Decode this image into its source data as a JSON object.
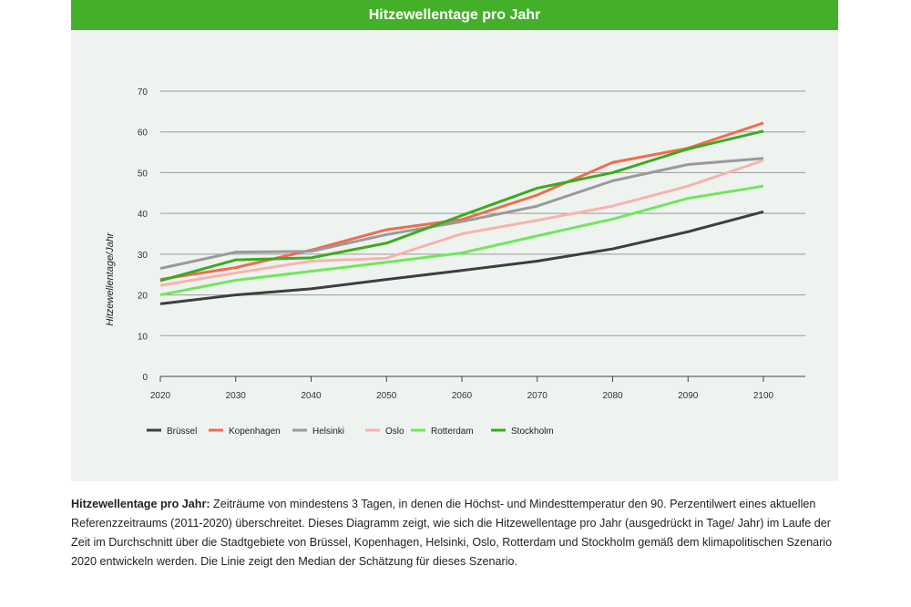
{
  "chart_data": {
    "type": "line",
    "title": "Hitzewellentage pro Jahr",
    "ylabel": "Hitzewellentage/Jahr",
    "xlabel": "",
    "x": [
      2020,
      2030,
      2040,
      2050,
      2060,
      2070,
      2080,
      2090,
      2100
    ],
    "xlim": [
      2020,
      2100
    ],
    "ylim": [
      0,
      70
    ],
    "yticks": [
      0,
      10,
      20,
      30,
      40,
      50,
      60,
      70
    ],
    "grid": true,
    "legend_placement": "bottom",
    "series": [
      {
        "name": "Brüssel",
        "color": "#3a3f44",
        "values": [
          17.8,
          20.0,
          21.5,
          23.8,
          26.0,
          28.3,
          31.3,
          35.5,
          40.4
        ]
      },
      {
        "name": "Kopenhagen",
        "color": "#f26b4e",
        "values": [
          23.8,
          26.7,
          31.0,
          36.0,
          38.5,
          44.5,
          52.5,
          56.0,
          62.2
        ]
      },
      {
        "name": "Helsinki",
        "color": "#9a9a9a",
        "values": [
          26.5,
          30.5,
          30.7,
          34.8,
          38.0,
          41.8,
          48.0,
          52.0,
          53.5
        ]
      },
      {
        "name": "Oslo",
        "color": "#f8b3ae",
        "values": [
          22.3,
          25.4,
          28.3,
          29.0,
          35.0,
          38.3,
          41.8,
          46.7,
          53.0
        ]
      },
      {
        "name": "Rotterdam",
        "color": "#6ee85a",
        "values": [
          20.0,
          23.6,
          25.8,
          28.0,
          30.3,
          34.5,
          38.6,
          43.7,
          46.7
        ]
      },
      {
        "name": "Stockholm",
        "color": "#3aac1e",
        "values": [
          23.5,
          28.6,
          29.1,
          32.7,
          39.5,
          46.2,
          50.0,
          55.8,
          60.2
        ]
      }
    ]
  },
  "colors": {
    "header": "#44b02a",
    "panel": "#eff3f0"
  },
  "caption": {
    "lead": "Hitzewellentage pro Jahr:",
    "text": " Zeiträume von mindestens 3 Tagen, in denen die Höchst- und Mindesttemperatur den 90. Perzentilwert eines aktuellen Referenzzeitraums (2011-2020) überschreitet. Dieses Diagramm zeigt, wie sich die Hitzewellentage pro Jahr (ausgedrückt in Tage/ Jahr) im Laufe der Zeit im Durchschnitt über die Stadtgebiete von Brüssel, Kopenhagen, Helsinki, Oslo, Rotterdam und Stockholm gemäß dem klimapolitischen Szenario 2020 entwickeln werden. Die Linie zeigt den Median der Schätzung für dieses Szenario."
  }
}
